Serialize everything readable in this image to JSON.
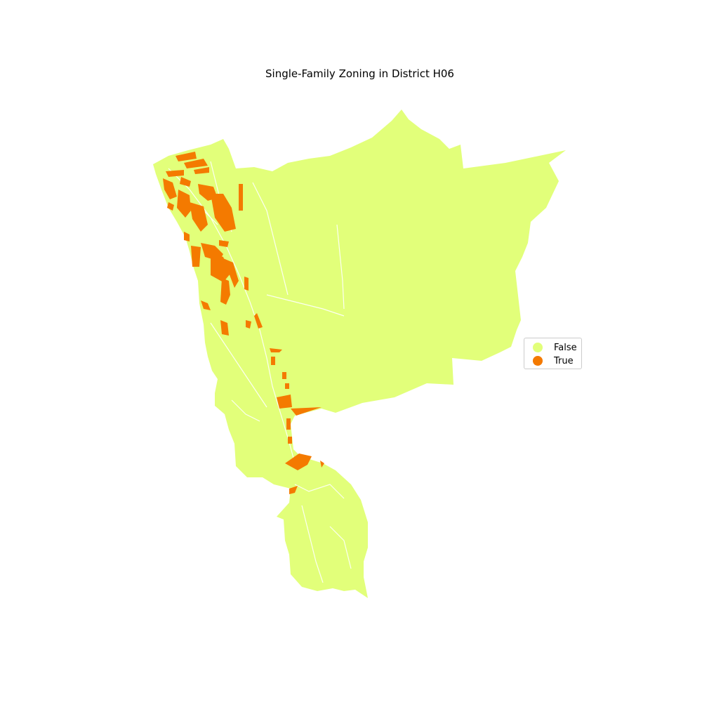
{
  "title": "Single-Family Zoning in District H06",
  "legend": {
    "entries": [
      {
        "label": "False",
        "color": "#e2ff7a"
      },
      {
        "label": "True",
        "color": "#f47a00"
      }
    ]
  },
  "colors": {
    "false": "#e2ff7a",
    "true": "#f47a00",
    "road": "#ffffff"
  }
}
